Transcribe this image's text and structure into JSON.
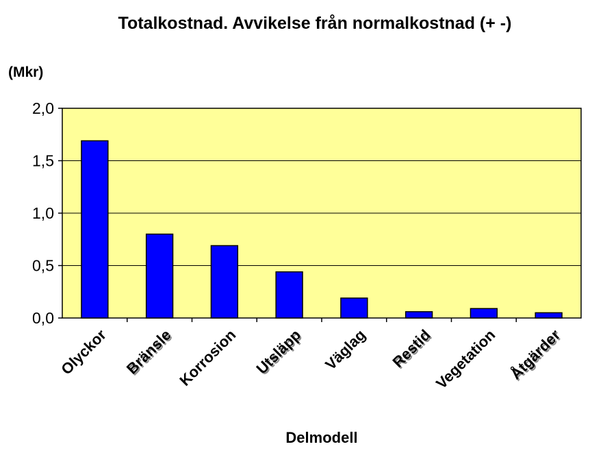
{
  "chart_data": {
    "type": "bar",
    "title": "Totalkostnad. Avvikelse från normalkostnad (+ -)",
    "unit_label": "(Mkr)",
    "xlabel": "Delmodell",
    "ylabel": "",
    "ylim": [
      0,
      2.0
    ],
    "yticks": [
      "0,0",
      "0,5",
      "1,0",
      "1,5",
      "2,0"
    ],
    "ytick_values": [
      0,
      0.5,
      1.0,
      1.5,
      2.0
    ],
    "categories": [
      "Olyckor",
      "Bränsle",
      "Korrosion",
      "Utsläpp",
      "Väglag",
      "Restid",
      "Vegetation",
      "Åtgärder"
    ],
    "values": [
      1.69,
      0.8,
      0.69,
      0.44,
      0.19,
      0.06,
      0.09,
      0.05
    ],
    "grid": true,
    "legend": "none",
    "colors": {
      "bar": "#0000FF",
      "plot_background": "#FFFF99",
      "grid": "#000000"
    }
  }
}
